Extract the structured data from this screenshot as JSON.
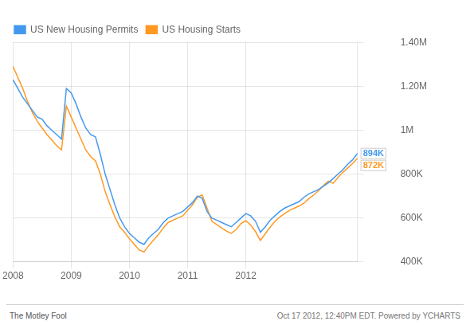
{
  "chart_data": {
    "type": "line",
    "categories": [
      "2008",
      null,
      null,
      null,
      null,
      null,
      null,
      null,
      null,
      null,
      null,
      null,
      "2009",
      null,
      null,
      null,
      null,
      null,
      null,
      null,
      null,
      null,
      null,
      null,
      "2010",
      null,
      null,
      null,
      null,
      null,
      null,
      null,
      null,
      null,
      null,
      null,
      "2011",
      null,
      null,
      null,
      null,
      null,
      null,
      null,
      null,
      null,
      null,
      null,
      "2012",
      null,
      null,
      null,
      null,
      null,
      null,
      null,
      null,
      null,
      null,
      null,
      null,
      null,
      null,
      null,
      null,
      null,
      null,
      null,
      null,
      null,
      null,
      null
    ],
    "series": [
      {
        "name": "US New Housing Permits",
        "color": "#4499ee",
        "values": [
          1230000,
          1190000,
          1150000,
          1120000,
          1090000,
          1060000,
          1050000,
          1020000,
          1000000,
          980000,
          960000,
          1190000,
          1170000,
          1120000,
          1060000,
          1010000,
          980000,
          970000,
          890000,
          800000,
          730000,
          660000,
          600000,
          560000,
          530000,
          510000,
          490000,
          480000,
          510000,
          530000,
          550000,
          580000,
          600000,
          610000,
          620000,
          630000,
          650000,
          670000,
          700000,
          690000,
          630000,
          600000,
          590000,
          580000,
          570000,
          560000,
          580000,
          600000,
          620000,
          610000,
          585000,
          535000,
          560000,
          590000,
          610000,
          630000,
          645000,
          655000,
          665000,
          675000,
          695000,
          710000,
          720000,
          730000,
          745000,
          760000,
          780000,
          800000,
          820000,
          845000,
          865000,
          894000
        ]
      },
      {
        "name": "US Housing Starts",
        "color": "#ff9922",
        "values": [
          1290000,
          1240000,
          1190000,
          1130000,
          1080000,
          1040000,
          1010000,
          980000,
          955000,
          930000,
          910000,
          1110000,
          1060000,
          1010000,
          960000,
          910000,
          880000,
          860000,
          800000,
          720000,
          660000,
          605000,
          560000,
          535000,
          505000,
          480000,
          455000,
          445000,
          475000,
          500000,
          525000,
          555000,
          580000,
          590000,
          600000,
          610000,
          635000,
          660000,
          695000,
          705000,
          645000,
          585000,
          570000,
          555000,
          540000,
          530000,
          548000,
          575000,
          588000,
          568000,
          538000,
          498000,
          528000,
          558000,
          585000,
          605000,
          620000,
          635000,
          645000,
          655000,
          668000,
          688000,
          705000,
          725000,
          748000,
          768000,
          758000,
          785000,
          808000,
          828000,
          848000,
          872000
        ]
      }
    ],
    "ylim": [
      400000,
      1400000
    ],
    "yticks": [
      {
        "value": 400000,
        "label": "400K"
      },
      {
        "value": 600000,
        "label": "600K"
      },
      {
        "value": 800000,
        "label": "800K"
      },
      {
        "value": 1000000,
        "label": "1M"
      },
      {
        "value": 1200000,
        "label": "1.20M"
      },
      {
        "value": 1400000,
        "label": "1.40M"
      }
    ],
    "annotations": [
      {
        "text": "894K",
        "value": 894000,
        "color": "#4499ee"
      },
      {
        "text": "872K",
        "value": 872000,
        "color": "#ff9922"
      }
    ],
    "footer": {
      "left": "The Motley Fool",
      "right": "Oct 17 2012, 12:40PM EDT.  Powered by YCHARTS"
    },
    "grid": true,
    "legend": "upper left"
  }
}
